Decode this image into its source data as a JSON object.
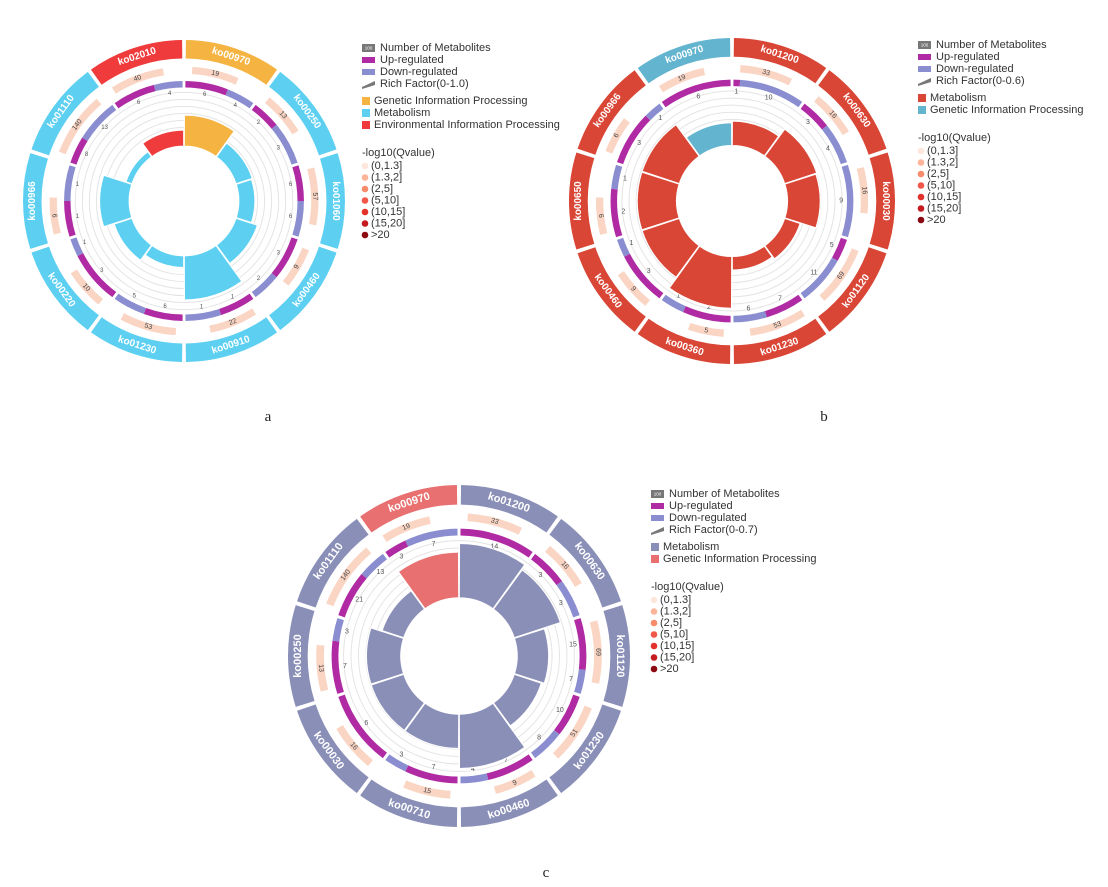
{
  "chart_data": [
    {
      "type": "circular_bar",
      "panel": "a",
      "legend": {
        "count_label": "Number of Metabolites",
        "count_swatch": "100",
        "up_label": "Up-regulated",
        "down_label": "Down-regulated",
        "rich_label": "Rich Factor(0-1.0)",
        "qvalue_title": "-log10(Qvalue)",
        "qvalue_bins": [
          "(0,1.3]",
          "(1.3,2]",
          "(2,5]",
          "(5,10]",
          "(10,15]",
          "(15,20]",
          ">20"
        ]
      },
      "categories_legend": [
        {
          "name": "Genetic Information Processing",
          "color": "#f5b342"
        },
        {
          "name": "Metabolism",
          "color": "#5dd0f2"
        },
        {
          "name": "Environmental Information Processing",
          "color": "#ef3b3b"
        }
      ],
      "pathways": [
        {
          "id": "ko00970",
          "category": 0,
          "count": "19",
          "up": "6",
          "down": "4",
          "rich": 0.58
        },
        {
          "id": "ko00250",
          "category": 1,
          "count": "13",
          "up": "2",
          "down": "3",
          "rich": 0.32
        },
        {
          "id": "ko01060",
          "category": 1,
          "count": "57",
          "up": "6",
          "down": "6",
          "rich": 0.3
        },
        {
          "id": "ko00460",
          "category": 1,
          "count": "9",
          "up": "3",
          "down": "2",
          "rich": 0.42
        },
        {
          "id": "ko00910",
          "category": 1,
          "count": "22",
          "up": "1",
          "down": "1",
          "rich": 0.82
        },
        {
          "id": "ko01230",
          "category": 1,
          "count": "53",
          "up": "6",
          "down": "5",
          "rich": 0.22
        },
        {
          "id": "ko00220",
          "category": 1,
          "count": "10",
          "up": "3",
          "down": "1",
          "rich": 0.35
        },
        {
          "id": "ko00966",
          "category": 1,
          "count": "6",
          "up": "1",
          "down": "1",
          "rich": 0.55
        },
        {
          "id": "ko01110",
          "category": 1,
          "count": "140",
          "up": "8",
          "down": "13",
          "rich": 0.12
        },
        {
          "id": "ko02010",
          "category": 2,
          "count": "40",
          "up": "6",
          "down": "4",
          "rich": 0.3
        }
      ]
    },
    {
      "type": "circular_bar",
      "panel": "b",
      "legend": {
        "count_label": "Number of Metabolites",
        "count_swatch": "100",
        "up_label": "Up-regulated",
        "down_label": "Down-regulated",
        "rich_label": "Rich Factor(0-0.6)",
        "qvalue_title": "-log10(Qvalue)",
        "qvalue_bins": [
          "(0,1.3]",
          "(1.3,2]",
          "(2,5]",
          "(5,10]",
          "(10,15]",
          "(15,20]",
          ">20"
        ]
      },
      "categories_legend": [
        {
          "name": "Metabolism",
          "color": "#d94636"
        },
        {
          "name": "Genetic Information Processing",
          "color": "#62b4cf"
        }
      ],
      "pathways": [
        {
          "id": "ko01200",
          "category": 0,
          "count": "33",
          "up": "1",
          "down": "10",
          "rich": 0.45
        },
        {
          "id": "ko00630",
          "category": 0,
          "count": "16",
          "up": "3",
          "down": "4",
          "rich": 0.62
        },
        {
          "id": "ko00030",
          "category": 0,
          "count": "16",
          "up": "",
          "down": "9",
          "rich": 0.6
        },
        {
          "id": "ko01120",
          "category": 0,
          "count": "69",
          "up": "5",
          "down": "11",
          "rich": 0.3
        },
        {
          "id": "ko01230",
          "category": 0,
          "count": "53",
          "up": "7",
          "down": "6",
          "rich": 0.25
        },
        {
          "id": "ko00360",
          "category": 0,
          "count": "5",
          "up": "2",
          "down": "1",
          "rich": 0.95
        },
        {
          "id": "ko00460",
          "category": 0,
          "count": "9",
          "up": "3",
          "down": "1",
          "rich": 0.72
        },
        {
          "id": "ko00650",
          "category": 0,
          "count": "6",
          "up": "2",
          "down": "1",
          "rich": 0.72
        },
        {
          "id": "ko00966",
          "category": 0,
          "count": "6",
          "up": "3",
          "down": "1",
          "rich": 0.72
        },
        {
          "id": "ko00970",
          "category": 1,
          "count": "19",
          "up": "6",
          "down": "",
          "rich": 0.42
        }
      ]
    },
    {
      "type": "circular_bar",
      "panel": "c",
      "legend": {
        "count_label": "Number of Metabolites",
        "count_swatch": "100",
        "up_label": "Up-regulated",
        "down_label": "Down-regulated",
        "rich_label": "Rich Factor(0-0.7)",
        "qvalue_title": "-log10(Qvalue)",
        "qvalue_bins": [
          "(0,1.3]",
          "(1.3,2]",
          "(2,5]",
          "(5,10]",
          "(10,15]",
          "(15,20]",
          ">20"
        ]
      },
      "categories_legend": [
        {
          "name": "Metabolism",
          "color": "#8a8fb8"
        },
        {
          "name": "Genetic Information Processing",
          "color": "#e87070"
        }
      ],
      "pathways": [
        {
          "id": "ko01200",
          "category": 0,
          "count": "33",
          "up": "14",
          "down": "",
          "rich": 0.95
        },
        {
          "id": "ko00630",
          "category": 0,
          "count": "16",
          "up": "3",
          "down": "3",
          "rich": 0.85
        },
        {
          "id": "ko01120",
          "category": 0,
          "count": "69",
          "up": "15",
          "down": "7",
          "rich": 0.55
        },
        {
          "id": "ko01230",
          "category": 0,
          "count": "51",
          "up": "10",
          "down": "8",
          "rich": 0.5
        },
        {
          "id": "ko00460",
          "category": 0,
          "count": "9",
          "up": "7",
          "down": "4",
          "rich": 0.95
        },
        {
          "id": "ko00710",
          "category": 0,
          "count": "15",
          "up": "7",
          "down": "3",
          "rich": 0.6
        },
        {
          "id": "ko00030",
          "category": 0,
          "count": "16",
          "up": "6",
          "down": "",
          "rich": 0.6
        },
        {
          "id": "ko00250",
          "category": 0,
          "count": "13",
          "up": "7",
          "down": "3",
          "rich": 0.6
        },
        {
          "id": "ko01110",
          "category": 0,
          "count": "140",
          "up": "21",
          "down": "13",
          "rich": 0.4
        },
        {
          "id": "ko00970",
          "category": 1,
          "count": "19",
          "up": "3",
          "down": "7",
          "rich": 0.8
        }
      ]
    }
  ]
}
